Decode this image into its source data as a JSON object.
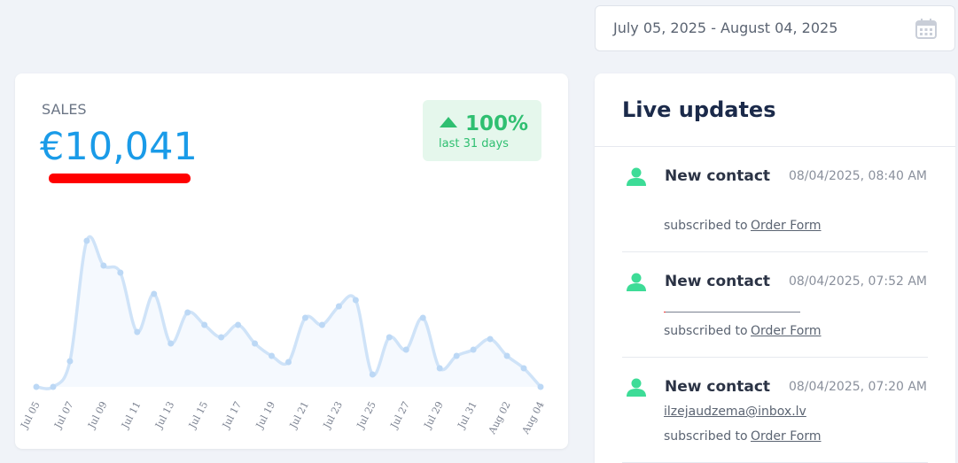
{
  "date_range": "July 05, 2025 - August 04, 2025",
  "sales": {
    "label": "SALES",
    "total": "€10,041",
    "change": "100%",
    "period": "last 31 days"
  },
  "chart_data": {
    "type": "line",
    "categories": [
      "Jul 05",
      null,
      "Jul 07",
      null,
      "Jul 09",
      null,
      "Jul 11",
      null,
      "Jul 13",
      null,
      "Jul 15",
      null,
      "Jul 17",
      null,
      "Jul 19",
      null,
      "Jul 21",
      null,
      "Jul 23",
      null,
      "Jul 25",
      null,
      "Jul 27",
      null,
      "Jul 29",
      null,
      "Jul 31",
      null,
      "Aug 02",
      null,
      "Aug 04"
    ],
    "values": [
      0,
      0,
      29,
      165,
      137,
      129,
      62,
      105,
      49,
      84,
      70,
      56,
      70,
      49,
      35,
      28,
      78,
      70,
      91,
      98,
      14,
      56,
      42,
      78,
      21,
      35,
      42,
      54,
      35,
      21,
      0
    ],
    "color": "#cfe3f8",
    "ylim": [
      0,
      180
    ]
  },
  "live_updates": {
    "title": "Live updates",
    "items": [
      {
        "title": "New contact",
        "time": "08/04/2025, 08:40 AM",
        "text": "subscribed to",
        "link": "Order Form"
      },
      {
        "title": "New contact",
        "time": "08/04/2025, 07:52 AM",
        "text": "subscribed to",
        "link": "Order Form"
      },
      {
        "title": "New contact",
        "time": "08/04/2025, 07:20 AM",
        "email": "ilzejaudzema@inbox.lv",
        "text": "subscribed to",
        "link": "Order Form"
      }
    ]
  }
}
